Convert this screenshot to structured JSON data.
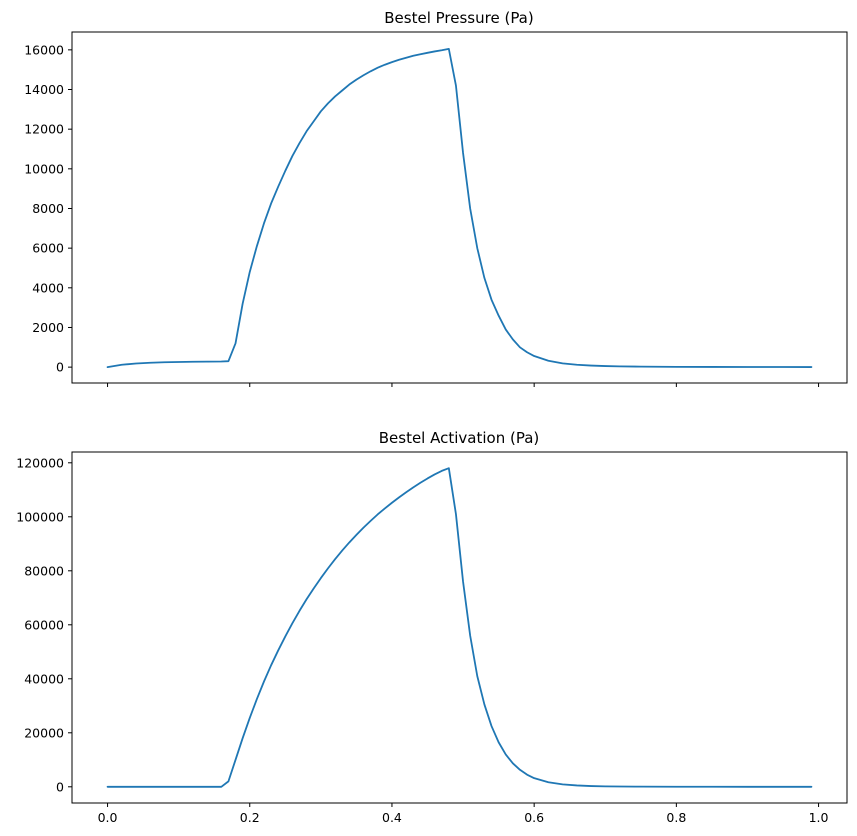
{
  "chart_data": [
    {
      "type": "line",
      "title": "Bestel Pressure (Pa)",
      "xlabel": "",
      "ylabel": "",
      "xlim": [
        -0.05,
        1.04
      ],
      "ylim": [
        -800,
        16900
      ],
      "x_ticks": [
        0.0,
        0.2,
        0.4,
        0.6,
        0.8,
        1.0
      ],
      "x_tick_labels_shown": false,
      "y_ticks": [
        0,
        2000,
        4000,
        6000,
        8000,
        10000,
        12000,
        14000,
        16000
      ],
      "y_tick_labels": [
        "0",
        "2000",
        "4000",
        "6000",
        "8000",
        "10000",
        "12000",
        "14000",
        "16000"
      ],
      "grid": false,
      "color": "#1f77b4",
      "series": [
        {
          "x": [
            0.0,
            0.02,
            0.04,
            0.06,
            0.08,
            0.1,
            0.12,
            0.14,
            0.16,
            0.17,
            0.18,
            0.19,
            0.2,
            0.21,
            0.22,
            0.23,
            0.24,
            0.25,
            0.26,
            0.27,
            0.28,
            0.29,
            0.3,
            0.31,
            0.32,
            0.33,
            0.34,
            0.35,
            0.36,
            0.37,
            0.38,
            0.39,
            0.4,
            0.41,
            0.42,
            0.43,
            0.44,
            0.45,
            0.46,
            0.47,
            0.48,
            0.49,
            0.5,
            0.51,
            0.52,
            0.53,
            0.54,
            0.55,
            0.56,
            0.57,
            0.58,
            0.59,
            0.6,
            0.62,
            0.64,
            0.66,
            0.68,
            0.7,
            0.72,
            0.75,
            0.8,
            0.85,
            0.9,
            0.95,
            0.99
          ],
          "y": [
            0,
            120,
            185,
            220,
            245,
            260,
            270,
            278,
            285,
            300,
            1200,
            3200,
            4800,
            6100,
            7250,
            8250,
            9100,
            9900,
            10650,
            11300,
            11900,
            12400,
            12900,
            13300,
            13650,
            13950,
            14250,
            14500,
            14720,
            14920,
            15100,
            15250,
            15380,
            15500,
            15600,
            15700,
            15780,
            15850,
            15920,
            15980,
            16050,
            14200,
            10800,
            8000,
            6000,
            4500,
            3400,
            2600,
            1900,
            1400,
            1000,
            750,
            560,
            320,
            190,
            120,
            80,
            55,
            40,
            25,
            15,
            10,
            8,
            6,
            5
          ]
        }
      ]
    },
    {
      "type": "line",
      "title": "Bestel Activation (Pa)",
      "xlabel": "",
      "ylabel": "",
      "xlim": [
        -0.05,
        1.04
      ],
      "ylim": [
        -6000,
        124000
      ],
      "x_ticks": [
        0.0,
        0.2,
        0.4,
        0.6,
        0.8,
        1.0
      ],
      "x_tick_labels": [
        "0.0",
        "0.2",
        "0.4",
        "0.6",
        "0.8",
        "1.0"
      ],
      "y_ticks": [
        0,
        20000,
        40000,
        60000,
        80000,
        100000,
        120000
      ],
      "y_tick_labels": [
        "0",
        "20000",
        "40000",
        "60000",
        "80000",
        "100000",
        "120000"
      ],
      "grid": false,
      "color": "#1f77b4",
      "series": [
        {
          "x": [
            0.0,
            0.04,
            0.08,
            0.12,
            0.16,
            0.17,
            0.18,
            0.19,
            0.2,
            0.21,
            0.22,
            0.23,
            0.24,
            0.25,
            0.26,
            0.27,
            0.28,
            0.29,
            0.3,
            0.31,
            0.32,
            0.33,
            0.34,
            0.35,
            0.36,
            0.37,
            0.38,
            0.39,
            0.4,
            0.41,
            0.42,
            0.43,
            0.44,
            0.45,
            0.46,
            0.47,
            0.48,
            0.49,
            0.5,
            0.51,
            0.52,
            0.53,
            0.54,
            0.55,
            0.56,
            0.57,
            0.58,
            0.59,
            0.6,
            0.62,
            0.64,
            0.66,
            0.68,
            0.7,
            0.72,
            0.75,
            0.8,
            0.85,
            0.9,
            0.95,
            0.99
          ],
          "y": [
            0,
            0,
            0,
            0,
            0,
            2000,
            10000,
            18000,
            25500,
            32500,
            39000,
            45000,
            50500,
            55700,
            60600,
            65200,
            69500,
            73500,
            77300,
            80900,
            84300,
            87500,
            90500,
            93300,
            96000,
            98500,
            100900,
            103100,
            105200,
            107200,
            109100,
            110900,
            112600,
            114200,
            115700,
            117000,
            118000,
            101000,
            76000,
            56000,
            41000,
            30500,
            22500,
            16500,
            12000,
            8700,
            6300,
            4500,
            3200,
            1700,
            900,
            500,
            280,
            160,
            100,
            50,
            20,
            10,
            5,
            3,
            2
          ]
        }
      ]
    }
  ]
}
